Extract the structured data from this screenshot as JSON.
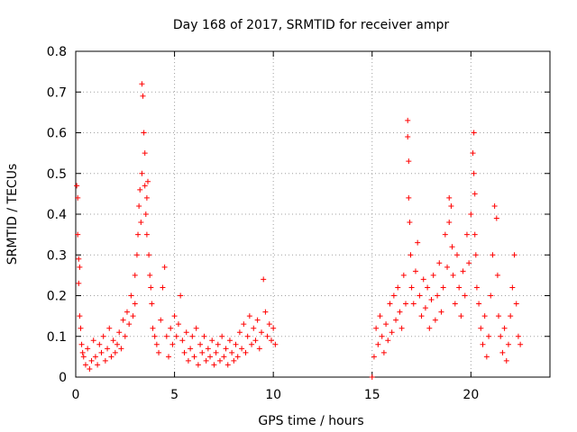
{
  "chart_data": {
    "type": "scatter",
    "title": "Day 168 of 2017, SRMTID for receiver ampr",
    "xlabel": "GPS time / hours",
    "ylabel": "SRMTID / TECUs",
    "xlim": [
      0,
      24
    ],
    "ylim": [
      0,
      0.8
    ],
    "xticks": [
      0,
      5,
      10,
      15,
      20
    ],
    "xtick_labels": [
      "0",
      "5",
      "10",
      "15",
      "20"
    ],
    "yticks": [
      0,
      0.1,
      0.2,
      0.3,
      0.4,
      0.5,
      0.6,
      0.7,
      0.8
    ],
    "ytick_labels": [
      "0",
      "0.1",
      "0.2",
      "0.3",
      "0.4",
      "0.5",
      "0.6",
      "0.7",
      "0.8"
    ],
    "grid": true,
    "marker": "+",
    "color": "#ff0000",
    "series": [
      {
        "name": "SRMTID",
        "x": [
          0.05,
          0.1,
          0.1,
          0.15,
          0.15,
          0.2,
          0.2,
          0.25,
          0.3,
          0.35,
          0.4,
          0.5,
          0.6,
          0.7,
          0.8,
          0.9,
          1.0,
          1.1,
          1.2,
          1.3,
          1.4,
          1.5,
          1.6,
          1.7,
          1.8,
          1.9,
          2.0,
          2.1,
          2.2,
          2.3,
          2.4,
          2.5,
          2.6,
          2.7,
          2.8,
          2.9,
          3.0,
          3.0,
          3.1,
          3.15,
          3.2,
          3.25,
          3.3,
          3.35,
          3.35,
          3.4,
          3.45,
          3.5,
          3.5,
          3.55,
          3.6,
          3.6,
          3.65,
          3.7,
          3.75,
          3.8,
          3.85,
          3.9,
          4.0,
          4.1,
          4.2,
          4.3,
          4.4,
          4.5,
          4.6,
          4.7,
          4.8,
          4.9,
          5.0,
          5.1,
          5.2,
          5.3,
          5.4,
          5.5,
          5.6,
          5.7,
          5.8,
          5.9,
          6.0,
          6.1,
          6.2,
          6.3,
          6.4,
          6.5,
          6.6,
          6.7,
          6.8,
          6.9,
          7.0,
          7.1,
          7.2,
          7.3,
          7.4,
          7.5,
          7.6,
          7.7,
          7.8,
          7.9,
          8.0,
          8.1,
          8.2,
          8.3,
          8.4,
          8.5,
          8.6,
          8.7,
          8.8,
          8.9,
          9.0,
          9.1,
          9.2,
          9.3,
          9.4,
          9.5,
          9.6,
          9.7,
          9.8,
          9.9,
          10.0,
          10.1,
          15.0,
          15.1,
          15.2,
          15.3,
          15.4,
          15.5,
          15.6,
          15.7,
          15.8,
          15.9,
          16.0,
          16.1,
          16.2,
          16.3,
          16.4,
          16.5,
          16.6,
          16.7,
          16.8,
          16.8,
          16.85,
          16.85,
          16.9,
          16.95,
          17.0,
          17.1,
          17.2,
          17.3,
          17.4,
          17.5,
          17.6,
          17.7,
          17.8,
          17.9,
          18.0,
          18.1,
          18.2,
          18.3,
          18.4,
          18.5,
          18.6,
          18.7,
          18.8,
          18.9,
          18.9,
          19.0,
          19.05,
          19.1,
          19.2,
          19.3,
          19.4,
          19.5,
          19.6,
          19.7,
          19.8,
          19.9,
          20.0,
          20.1,
          20.15,
          20.15,
          20.2,
          20.2,
          20.25,
          20.3,
          20.4,
          20.5,
          20.6,
          20.7,
          20.8,
          20.9,
          21.0,
          21.1,
          21.2,
          21.3,
          21.35,
          21.4,
          21.5,
          21.6,
          21.7,
          21.8,
          21.9,
          22.0,
          22.1,
          22.2,
          22.3,
          22.4,
          22.5
        ],
        "y": [
          0.47,
          0.44,
          0.35,
          0.29,
          0.23,
          0.15,
          0.27,
          0.12,
          0.08,
          0.06,
          0.05,
          0.03,
          0.07,
          0.02,
          0.04,
          0.09,
          0.05,
          0.03,
          0.08,
          0.06,
          0.1,
          0.04,
          0.07,
          0.12,
          0.05,
          0.09,
          0.06,
          0.08,
          0.11,
          0.07,
          0.14,
          0.1,
          0.16,
          0.13,
          0.2,
          0.15,
          0.25,
          0.18,
          0.3,
          0.35,
          0.42,
          0.46,
          0.38,
          0.5,
          0.72,
          0.69,
          0.6,
          0.55,
          0.47,
          0.4,
          0.44,
          0.35,
          0.48,
          0.3,
          0.25,
          0.22,
          0.18,
          0.12,
          0.1,
          0.08,
          0.06,
          0.14,
          0.22,
          0.27,
          0.1,
          0.05,
          0.12,
          0.08,
          0.15,
          0.1,
          0.13,
          0.2,
          0.09,
          0.06,
          0.11,
          0.04,
          0.07,
          0.1,
          0.05,
          0.12,
          0.03,
          0.08,
          0.06,
          0.1,
          0.04,
          0.07,
          0.05,
          0.09,
          0.03,
          0.06,
          0.08,
          0.04,
          0.1,
          0.05,
          0.07,
          0.03,
          0.09,
          0.06,
          0.04,
          0.08,
          0.05,
          0.11,
          0.07,
          0.13,
          0.06,
          0.1,
          0.15,
          0.08,
          0.12,
          0.09,
          0.14,
          0.07,
          0.11,
          0.24,
          0.16,
          0.1,
          0.13,
          0.09,
          0.12,
          0.08,
          0.0,
          0.05,
          0.12,
          0.08,
          0.15,
          0.1,
          0.06,
          0.13,
          0.09,
          0.18,
          0.11,
          0.2,
          0.14,
          0.22,
          0.16,
          0.12,
          0.25,
          0.18,
          0.59,
          0.63,
          0.53,
          0.44,
          0.38,
          0.3,
          0.22,
          0.18,
          0.26,
          0.33,
          0.2,
          0.15,
          0.24,
          0.17,
          0.22,
          0.12,
          0.19,
          0.25,
          0.14,
          0.2,
          0.28,
          0.16,
          0.22,
          0.35,
          0.27,
          0.44,
          0.38,
          0.42,
          0.32,
          0.25,
          0.18,
          0.3,
          0.22,
          0.15,
          0.26,
          0.2,
          0.35,
          0.28,
          0.4,
          0.55,
          0.6,
          0.5,
          0.45,
          0.35,
          0.3,
          0.22,
          0.18,
          0.12,
          0.08,
          0.15,
          0.05,
          0.1,
          0.2,
          0.3,
          0.42,
          0.39,
          0.25,
          0.15,
          0.1,
          0.06,
          0.12,
          0.04,
          0.08,
          0.15,
          0.22,
          0.3,
          0.18,
          0.1,
          0.08
        ]
      }
    ]
  }
}
